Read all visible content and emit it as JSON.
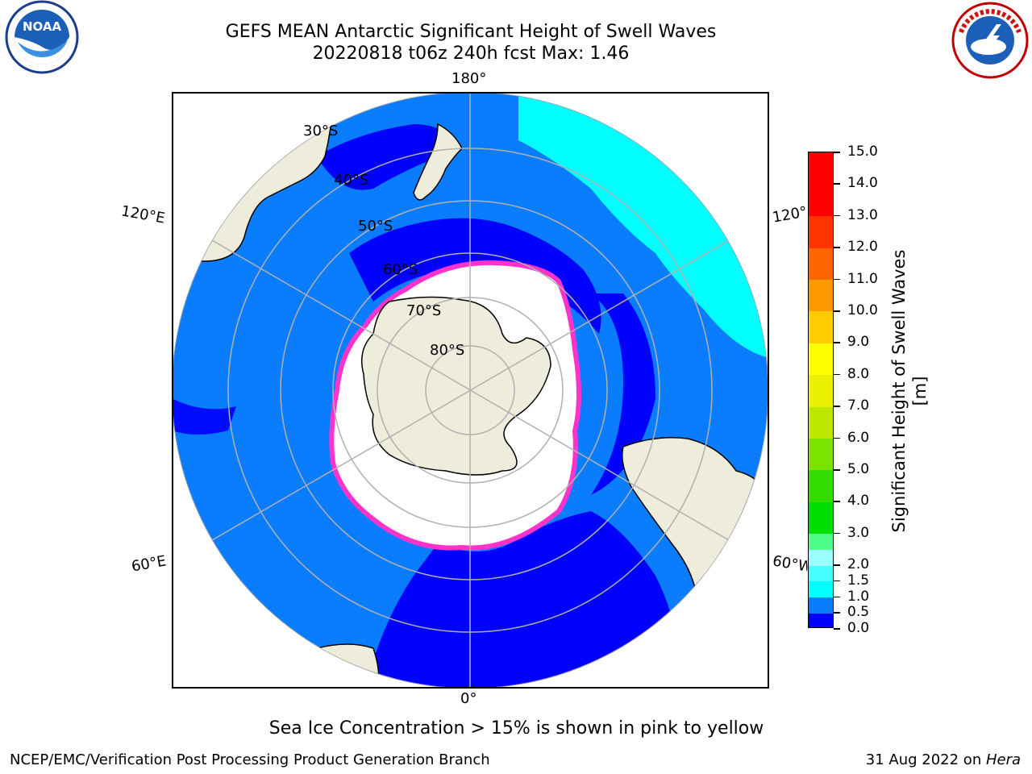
{
  "title": {
    "line1": "GEFS MEAN Antarctic Significant Height of Swell Waves",
    "line2": "20220818 t06z 240h fcst   Max: 1.46"
  },
  "logos": {
    "left": {
      "text": "NOAA",
      "ring_text": "NATIONAL OCEANIC AND ATMOSPHERIC ADMINISTRATION · U.S. DEPARTMENT OF COMMERCE"
    },
    "right": {
      "ring_text": "NATIONAL WEATHER SERVICE"
    }
  },
  "map": {
    "projection": "south-polar-stereographic",
    "longitude_labels": {
      "top": "180°",
      "bottom": "0°",
      "upper_left": "120°E",
      "lower_left": "60°E",
      "upper_right": "120°W",
      "lower_right": "60°W"
    },
    "latitude_labels": [
      "30°S",
      "40°S",
      "50°S",
      "60°S",
      "70°S",
      "80°S"
    ],
    "colors": {
      "land": "#eeecda",
      "ocean_low": "#0000ff",
      "ocean_mid": "#0a7dff",
      "ocean_high": "#00ffff",
      "sea_ice": "#ffffff",
      "ice_edge": "#ff33cc",
      "grid": "#b0b0b0"
    }
  },
  "colorbar": {
    "label": "Significant Height of Swell Waves [m]",
    "ticks": [
      "0.0",
      "0.5",
      "1.0",
      "1.5",
      "2.0",
      "2.5",
      "3.0",
      "3.5",
      "4.0",
      "4.5",
      "5.0",
      "5.5",
      "6.0",
      "6.5",
      "7.0",
      "7.5",
      "8.0",
      "8.5",
      "9.0",
      "9.5",
      "10.0",
      "10.5",
      "11.0",
      "11.5",
      "12.0",
      "12.5",
      "13.0",
      "13.5",
      "14.0",
      "14.5",
      "15.0"
    ],
    "ticks_shown": [
      "0.0",
      "0.5",
      "1.0",
      "1.5",
      "2.0",
      "3.0",
      "4.0",
      "5.0",
      "6.0",
      "7.0",
      "8.0",
      "9.0",
      "10.0",
      "11.0",
      "12.0",
      "13.0",
      "14.0",
      "15.0"
    ],
    "colors": [
      "#0000ff",
      "#0a7dff",
      "#00ffff",
      "#47ffff",
      "#9cffff",
      "#4dff88",
      "#00e000",
      "#33dd00",
      "#7ae300",
      "#bfe800",
      "#eaf000",
      "#ffff00",
      "#ffcc00",
      "#ff9900",
      "#ff6600",
      "#ff3300",
      "#ff0000"
    ]
  },
  "footnote": "Sea Ice Concentration > 15% is shown in pink to yellow",
  "credit": "NCEP/EMC/Verification Post Processing Product Generation Branch",
  "stamp": {
    "date": "31 Aug 2022 on ",
    "host": "Hera"
  }
}
